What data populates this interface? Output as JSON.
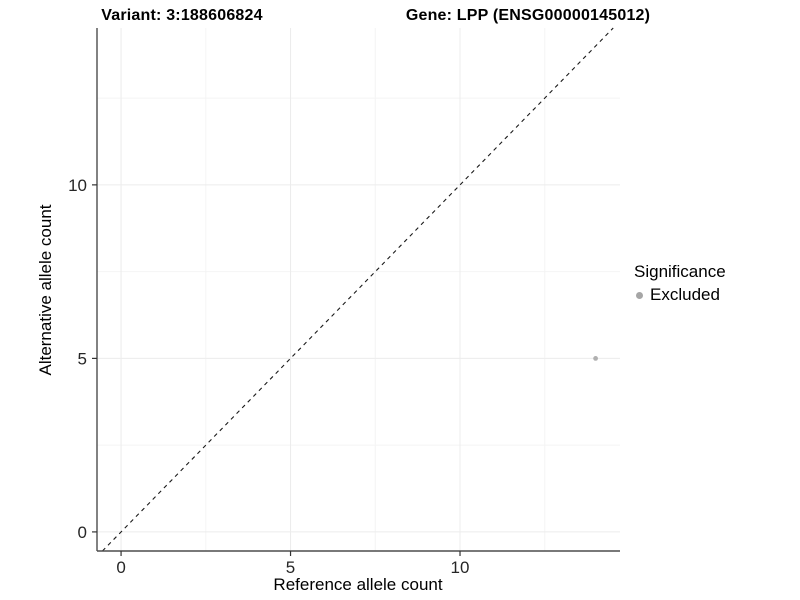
{
  "chart_data": {
    "type": "scatter",
    "titles": {
      "variant": "Variant: 3:188606824",
      "gene": "Gene: LPP (ENSG00000145012)"
    },
    "xlabel": "Reference allele count",
    "ylabel": "Alternative allele count",
    "xlim": [
      -0.71,
      14.72
    ],
    "ylim": [
      -0.55,
      14.52
    ],
    "x_ticks": [
      0,
      5,
      10
    ],
    "y_ticks": [
      0,
      5,
      10
    ],
    "x_minor_ticks": [
      2.5,
      7.5,
      12.5
    ],
    "y_minor_ticks": [
      2.5,
      7.5,
      12.5
    ],
    "grid": true,
    "legend_position": "right",
    "reference_line": {
      "kind": "identity",
      "style": "dashed",
      "color": "#1a1a1a"
    },
    "series": [
      {
        "name": "Excluded",
        "marker": "circle-icon",
        "color": "#b0b0b0",
        "points": [
          {
            "x": 14,
            "y": 5
          }
        ]
      }
    ],
    "legend": {
      "title": "Significance",
      "items": [
        {
          "label": "Excluded",
          "color": "#a6a6a6"
        }
      ]
    },
    "colors": {
      "panel_background": "#ffffff",
      "grid_major": "#ececec",
      "grid_minor": "#f4f4f4",
      "axis_line": "#4d4d4d",
      "tick_mark": "#333333",
      "tick_label": "#262626",
      "title_text": "#000000"
    }
  }
}
